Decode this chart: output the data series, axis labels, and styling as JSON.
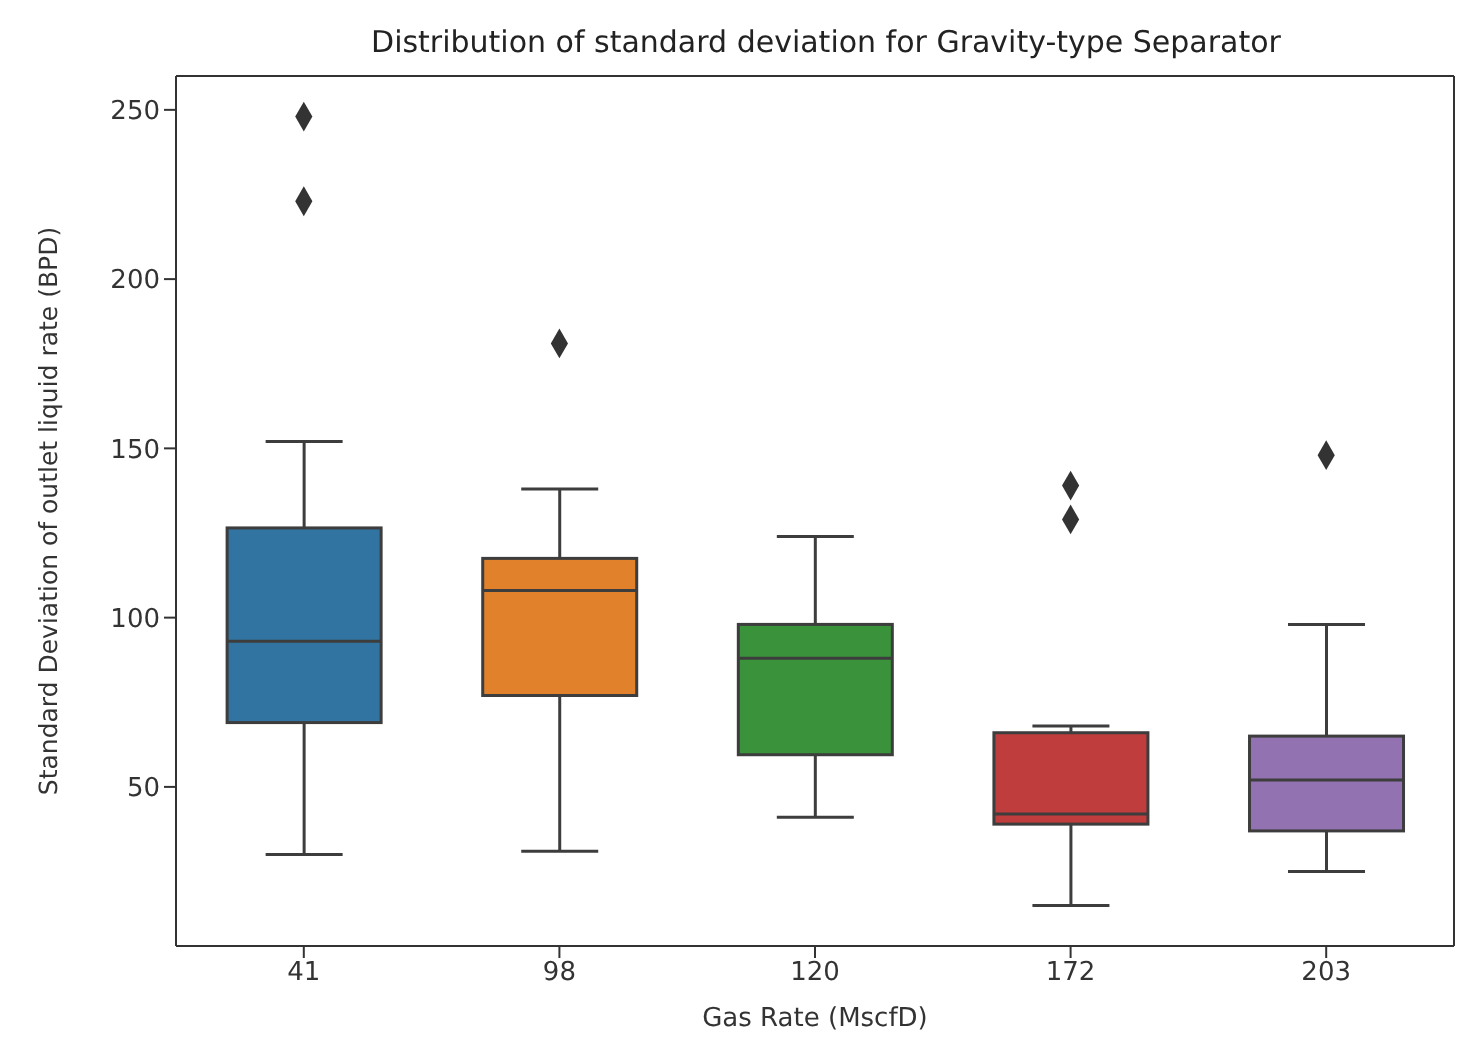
{
  "chart_data": {
    "type": "box",
    "title": "Distribution of standard deviation for Gravity-type Separator",
    "xlabel": "Gas Rate (MscfD)",
    "ylabel": "Standard Deviation of outlet liquid rate (BPD)",
    "categories": [
      "41",
      "98",
      "120",
      "172",
      "203"
    ],
    "colors": [
      "#3274a1",
      "#e1812c",
      "#3a923a",
      "#c03d3e",
      "#9372b2"
    ],
    "boxes": [
      {
        "low": 30,
        "q1": 69,
        "median": 93,
        "q3": 126.5,
        "high": 152,
        "outliers": [
          248,
          223
        ]
      },
      {
        "low": 31,
        "q1": 77,
        "median": 108,
        "q3": 117.5,
        "high": 138,
        "outliers": [
          181
        ]
      },
      {
        "low": 41,
        "q1": 59.5,
        "median": 88,
        "q3": 98,
        "high": 124
      },
      {
        "low": 15,
        "q1": 39,
        "median": 42,
        "q3": 66,
        "high": 68,
        "outliers": [
          139,
          129
        ]
      },
      {
        "low": 25,
        "q1": 37,
        "median": 52,
        "q3": 65,
        "high": 98,
        "outliers": [
          148
        ]
      }
    ],
    "ylim": [
      3,
      260
    ],
    "yticks": [
      50,
      100,
      150,
      200,
      250
    ],
    "marker": "diamond",
    "grid": false
  }
}
